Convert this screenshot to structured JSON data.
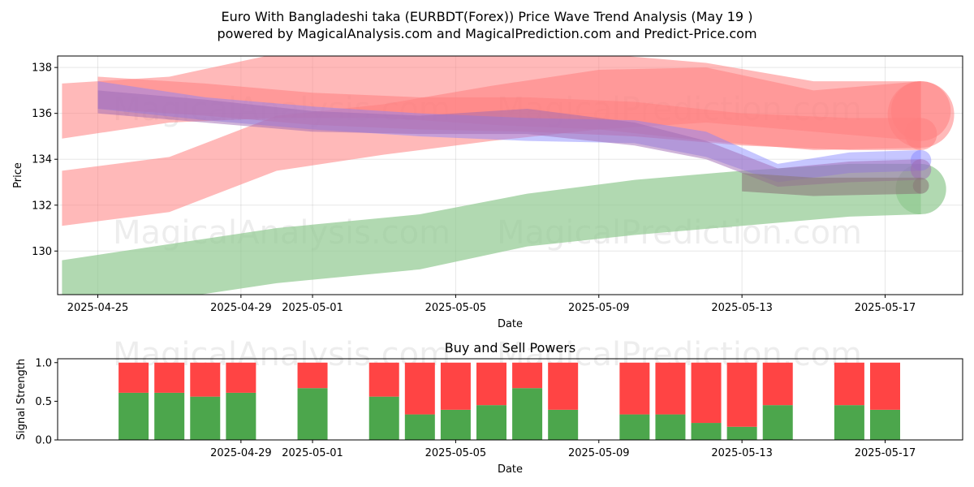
{
  "title_line1": "Euro With Bangladeshi taka (EURBDT(Forex)) Price Wave Trend Analysis (May 19 )",
  "title_line2": "powered by MagicalAnalysis.com and MagicalPrediction.com and Predict-Price.com",
  "watermarks": [
    "MagicalAnalysis.com",
    "MagicalPrediction.com"
  ],
  "colors": {
    "buy": "#4ca64c",
    "sell": "#ff4444",
    "red_band": "#ff7f7f",
    "green_band": "#90c990",
    "blue_band": "#8080ff",
    "purple_band": "#a06ab4"
  },
  "chart_data": [
    {
      "type": "area",
      "title": "",
      "xlabel": "Date",
      "ylabel": "Price",
      "x_range": [
        "2025-04-24",
        "2025-05-19"
      ],
      "ylim": [
        128.1,
        138.5
      ],
      "yticks": [
        130,
        132,
        134,
        136,
        138
      ],
      "xticks": [
        "2025-04-25",
        "2025-04-29",
        "2025-05-01",
        "2025-05-05",
        "2025-05-09",
        "2025-05-13",
        "2025-05-17"
      ],
      "grid": true,
      "series": [
        {
          "color": "red",
          "x": [
            "2025-04-24",
            "2025-04-27",
            "2025-04-30",
            "2025-05-03",
            "2025-05-06",
            "2025-05-09",
            "2025-05-12",
            "2025-05-15",
            "2025-05-18"
          ],
          "upper": [
            137.3,
            137.6,
            138.6,
            138.6,
            138.6,
            138.6,
            138.2,
            137.4,
            137.4
          ],
          "lower": [
            134.9,
            135.6,
            135.8,
            135.8,
            135.5,
            135.3,
            134.8,
            134.4,
            134.5
          ]
        },
        {
          "color": "red",
          "x": [
            "2025-04-24",
            "2025-04-27",
            "2025-04-30",
            "2025-05-03",
            "2025-05-06",
            "2025-05-09",
            "2025-05-12",
            "2025-05-15",
            "2025-05-18"
          ],
          "upper": [
            133.5,
            134.1,
            135.9,
            136.4,
            137.2,
            137.9,
            138.0,
            137.0,
            137.4
          ],
          "lower": [
            131.1,
            131.7,
            133.5,
            134.2,
            134.8,
            135.3,
            135.6,
            135.2,
            134.8
          ]
        },
        {
          "color": "red",
          "x": [
            "2025-04-25",
            "2025-04-28",
            "2025-05-01",
            "2025-05-04",
            "2025-05-07",
            "2025-05-10",
            "2025-05-13",
            "2025-05-16",
            "2025-05-18"
          ],
          "upper": [
            137.6,
            137.3,
            136.9,
            136.7,
            136.7,
            136.5,
            136.0,
            135.8,
            135.8
          ],
          "lower": [
            136.2,
            135.9,
            135.5,
            135.3,
            135.2,
            135.0,
            134.6,
            134.4,
            134.4
          ]
        },
        {
          "color": "green",
          "x": [
            "2025-04-24",
            "2025-04-27",
            "2025-04-30",
            "2025-05-04",
            "2025-05-07",
            "2025-05-10",
            "2025-05-13",
            "2025-05-16",
            "2025-05-18"
          ],
          "upper": [
            129.6,
            130.3,
            131.0,
            131.6,
            132.5,
            133.1,
            133.5,
            133.8,
            133.8
          ],
          "lower": [
            127.8,
            127.9,
            128.6,
            129.2,
            130.2,
            130.7,
            131.1,
            131.5,
            131.6
          ]
        },
        {
          "color": "blue",
          "x": [
            "2025-04-25",
            "2025-04-28",
            "2025-05-01",
            "2025-05-04",
            "2025-05-07",
            "2025-05-10",
            "2025-05-12",
            "2025-05-14",
            "2025-05-16",
            "2025-05-18"
          ],
          "upper": [
            137.4,
            136.7,
            136.3,
            136.0,
            135.8,
            135.7,
            135.2,
            133.8,
            134.3,
            134.4
          ],
          "lower": [
            136.2,
            135.7,
            135.3,
            135.0,
            134.8,
            134.7,
            134.1,
            133.0,
            133.4,
            133.5
          ]
        },
        {
          "color": "purple",
          "x": [
            "2025-04-25",
            "2025-04-28",
            "2025-05-01",
            "2025-05-04",
            "2025-05-07",
            "2025-05-10",
            "2025-05-12",
            "2025-05-14",
            "2025-05-16",
            "2025-05-18"
          ],
          "upper": [
            137.0,
            136.6,
            136.1,
            135.9,
            136.2,
            135.6,
            134.8,
            133.6,
            133.9,
            134.0
          ],
          "lower": [
            136.0,
            135.6,
            135.2,
            135.1,
            135.1,
            134.6,
            134.0,
            132.8,
            133.0,
            133.1
          ]
        },
        {
          "color": "gray",
          "x": [
            "2025-05-13",
            "2025-05-15",
            "2025-05-18"
          ],
          "upper": [
            133.4,
            133.2,
            133.2
          ],
          "lower": [
            132.6,
            132.4,
            132.5
          ]
        }
      ]
    },
    {
      "type": "bar",
      "title": "Buy and Sell Powers",
      "xlabel": "Date",
      "ylabel": "Signal Strength",
      "ylim": [
        0,
        1.05
      ],
      "yticks": [
        0.0,
        0.5,
        1.0
      ],
      "xticks": [
        "2025-04-29",
        "2025-05-01",
        "2025-05-05",
        "2025-05-09",
        "2025-05-13",
        "2025-05-17"
      ],
      "categories": [
        "2025-04-26",
        "2025-04-27",
        "2025-04-28",
        "2025-04-29",
        "2025-05-01",
        "2025-05-03",
        "2025-05-04",
        "2025-05-05",
        "2025-05-06",
        "2025-05-07",
        "2025-05-08",
        "2025-05-10",
        "2025-05-11",
        "2025-05-12",
        "2025-05-13",
        "2025-05-14",
        "2025-05-16",
        "2025-05-17"
      ],
      "series": [
        {
          "name": "Buy",
          "values": [
            0.61,
            0.61,
            0.56,
            0.61,
            0.67,
            0.56,
            0.33,
            0.39,
            0.45,
            0.67,
            0.39,
            0.33,
            0.33,
            0.22,
            0.17,
            0.45,
            0.45,
            0.39
          ]
        },
        {
          "name": "Sell",
          "values": [
            0.39,
            0.39,
            0.44,
            0.39,
            0.33,
            0.44,
            0.67,
            0.61,
            0.55,
            0.33,
            0.61,
            0.67,
            0.67,
            0.78,
            0.83,
            0.55,
            0.55,
            0.61
          ]
        }
      ]
    }
  ]
}
